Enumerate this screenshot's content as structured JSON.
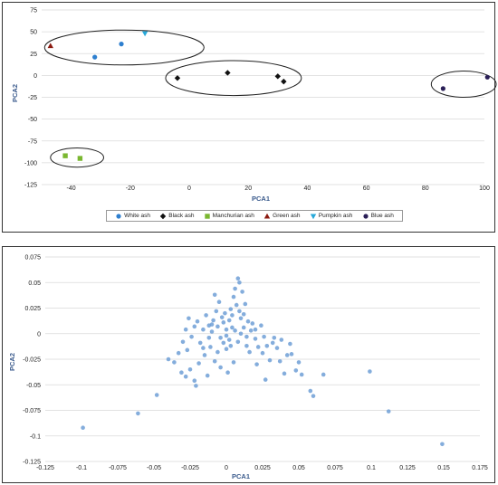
{
  "chart_data": [
    {
      "type": "scatter",
      "title": "",
      "xlabel": "PCA1",
      "ylabel": "PCA2",
      "xlim": [
        -50,
        100
      ],
      "ylim": [
        -125,
        75
      ],
      "x_ticks": [
        "-40",
        "-20",
        "0",
        "20",
        "40",
        "60",
        "80",
        "100"
      ],
      "y_ticks": [
        "75",
        "50",
        "25",
        "0",
        "-25",
        "-50",
        "-75",
        "-100",
        "-125"
      ],
      "grid": true,
      "legend_placement": "bottom",
      "series": [
        {
          "name": "White ash",
          "color": "#2e7fcf",
          "marker": "circle",
          "points": [
            [
              -32,
              21
            ],
            [
              -23,
              36
            ]
          ]
        },
        {
          "name": "Black ash",
          "color": "#111111",
          "marker": "diamond",
          "points": [
            [
              -4,
              -3
            ],
            [
              13,
              3
            ],
            [
              30,
              -1
            ],
            [
              32,
              -7
            ]
          ]
        },
        {
          "name": "Manchurian ash",
          "color": "#7ab730",
          "marker": "square",
          "points": [
            [
              -42,
              -92
            ],
            [
              -37,
              -95
            ]
          ]
        },
        {
          "name": "Green ash",
          "color": "#8b1a10",
          "marker": "triangle",
          "points": [
            [
              -47,
              34
            ]
          ]
        },
        {
          "name": "Pumpkin ash",
          "color": "#27a8d9",
          "marker": "triangle-down",
          "points": [
            [
              -15,
              48
            ]
          ]
        },
        {
          "name": "Blue ash",
          "color": "#2a1f57",
          "marker": "circle",
          "points": [
            [
              86,
              -15
            ],
            [
              101,
              -2
            ]
          ]
        }
      ],
      "annotations": [
        {
          "shape": "ellipse",
          "center": [
            -22,
            32
          ],
          "radii": [
            27,
            20
          ]
        },
        {
          "shape": "ellipse",
          "center": [
            15,
            -3
          ],
          "radii": [
            23,
            20
          ]
        },
        {
          "shape": "ellipse",
          "center": [
            93,
            -10
          ],
          "radii": [
            11,
            15
          ]
        },
        {
          "shape": "ellipse",
          "center": [
            -38,
            -94
          ],
          "radii": [
            9,
            11
          ]
        }
      ]
    },
    {
      "type": "scatter",
      "title": "",
      "xlabel": "PCA1",
      "ylabel": "PCA2",
      "xlim": [
        -0.125,
        0.175
      ],
      "ylim": [
        -0.125,
        0.075
      ],
      "x_ticks": [
        "-0.125",
        "-0.1",
        "-0.075",
        "-0.05",
        "-0.025",
        "0",
        "0.025",
        "0.05",
        "0.075",
        "0.1",
        "0.125",
        "0.15",
        "0.175"
      ],
      "y_ticks": [
        "0.075",
        "0.05",
        "0.025",
        "0",
        "-0.025",
        "-0.05",
        "-0.075",
        "-0.1",
        "-0.125"
      ],
      "grid": true,
      "series": [
        {
          "color": "#6f9fd6",
          "points": [
            [
              -0.099,
              -0.092
            ],
            [
              -0.061,
              -0.078
            ],
            [
              -0.048,
              -0.06
            ],
            [
              -0.04,
              -0.025
            ],
            [
              -0.033,
              -0.019
            ],
            [
              -0.031,
              -0.038
            ],
            [
              -0.028,
              -0.042
            ],
            [
              -0.025,
              -0.035
            ],
            [
              -0.022,
              -0.046
            ],
            [
              -0.027,
              -0.016
            ],
            [
              -0.024,
              -0.003
            ],
            [
              -0.022,
              0.007
            ],
            [
              -0.019,
              -0.029
            ],
            [
              -0.015,
              -0.021
            ],
            [
              -0.013,
              -0.041
            ],
            [
              -0.011,
              -0.013
            ],
            [
              -0.009,
              0.013
            ],
            [
              -0.007,
              0.022
            ],
            [
              -0.005,
              0.031
            ],
            [
              -0.003,
              0.016
            ],
            [
              -0.018,
              -0.009
            ],
            [
              -0.016,
              0.004
            ],
            [
              -0.012,
              -0.004
            ],
            [
              -0.01,
              0.009
            ],
            [
              -0.008,
              -0.027
            ],
            [
              -0.006,
              -0.018
            ],
            [
              -0.004,
              -0.033
            ],
            [
              -0.002,
              -0.009
            ],
            [
              0.0,
              -0.015
            ],
            [
              0.001,
              -0.038
            ],
            [
              0.003,
              0.024
            ],
            [
              0.005,
              0.036
            ],
            [
              0.007,
              0.028
            ],
            [
              0.009,
              0.05
            ],
            [
              0.011,
              0.041
            ],
            [
              0.013,
              0.029
            ],
            [
              0.008,
              0.054
            ],
            [
              0.006,
              0.044
            ],
            [
              0.004,
              0.018
            ],
            [
              0.012,
              0.019
            ],
            [
              0.015,
              0.012
            ],
            [
              0.017,
              0.003
            ],
            [
              0.02,
              -0.005
            ],
            [
              0.022,
              -0.013
            ],
            [
              0.025,
              -0.019
            ],
            [
              0.028,
              -0.012
            ],
            [
              0.03,
              -0.026
            ],
            [
              0.032,
              -0.009
            ],
            [
              0.035,
              -0.014
            ],
            [
              0.037,
              -0.027
            ],
            [
              0.04,
              -0.039
            ],
            [
              0.042,
              -0.021
            ],
            [
              0.045,
              -0.02
            ],
            [
              0.048,
              -0.036
            ],
            [
              0.052,
              -0.04
            ],
            [
              0.058,
              -0.056
            ],
            [
              0.06,
              -0.061
            ],
            [
              0.067,
              -0.04
            ],
            [
              0.099,
              -0.037
            ],
            [
              0.112,
              -0.076
            ],
            [
              0.149,
              -0.108
            ],
            [
              -0.028,
              0.004
            ],
            [
              -0.03,
              -0.008
            ],
            [
              -0.014,
              0.018
            ],
            [
              -0.02,
              0.012
            ],
            [
              0.018,
              0.01
            ],
            [
              0.02,
              0.004
            ],
            [
              0.026,
              -0.003
            ],
            [
              0.033,
              -0.004
            ],
            [
              -0.006,
              0.007
            ],
            [
              -0.002,
              0.011
            ],
            [
              0.002,
              0.013
            ],
            [
              0.004,
              0.006
            ],
            [
              0.006,
              0.003
            ],
            [
              -0.004,
              -0.004
            ],
            [
              0.0,
              -0.002
            ],
            [
              0.002,
              -0.006
            ],
            [
              0.008,
              -0.008
            ],
            [
              0.01,
              0.0
            ],
            [
              0.014,
              -0.003
            ],
            [
              -0.01,
              0.002
            ],
            [
              -0.012,
              0.008
            ],
            [
              0.012,
              0.006
            ],
            [
              0.0,
              0.004
            ],
            [
              0.003,
              -0.012
            ],
            [
              -0.001,
              0.02
            ],
            [
              0.01,
              0.015
            ],
            [
              0.014,
              -0.012
            ],
            [
              -0.016,
              -0.014
            ],
            [
              0.016,
              -0.018
            ],
            [
              0.024,
              0.008
            ],
            [
              0.038,
              -0.006
            ],
            [
              0.044,
              -0.01
            ],
            [
              0.05,
              -0.028
            ],
            [
              -0.036,
              -0.028
            ],
            [
              -0.021,
              -0.051
            ],
            [
              0.021,
              -0.03
            ],
            [
              0.027,
              -0.045
            ],
            [
              -0.008,
              0.038
            ],
            [
              0.005,
              -0.028
            ],
            [
              -0.026,
              0.015
            ],
            [
              0.009,
              0.022
            ]
          ]
        }
      ]
    }
  ]
}
